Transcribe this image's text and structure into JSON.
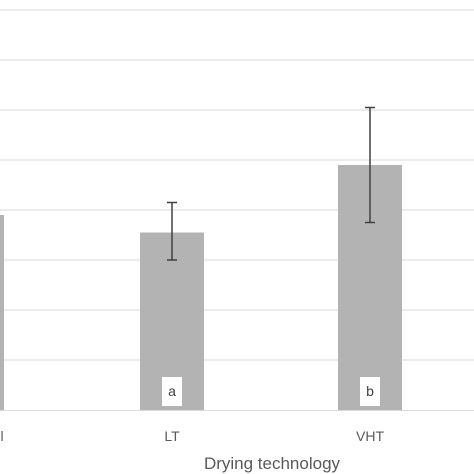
{
  "chart_data": {
    "type": "bar",
    "xlabel": "Drying technology",
    "categories": [
      "",
      "LT",
      "VHT"
    ],
    "visible_partial_label": "l",
    "values": [
      3.9,
      3.55,
      4.9
    ],
    "error_low": [
      null,
      3.0,
      3.75
    ],
    "error_high": [
      null,
      4.15,
      6.05
    ],
    "significance_letters": [
      "",
      "a",
      "b"
    ],
    "ylim": [
      0,
      8
    ],
    "y_grid_step": 1,
    "grid": true,
    "bar_color": "#b3b3b3",
    "grid_color": "#d9d9d9",
    "error_color": "#404040"
  }
}
